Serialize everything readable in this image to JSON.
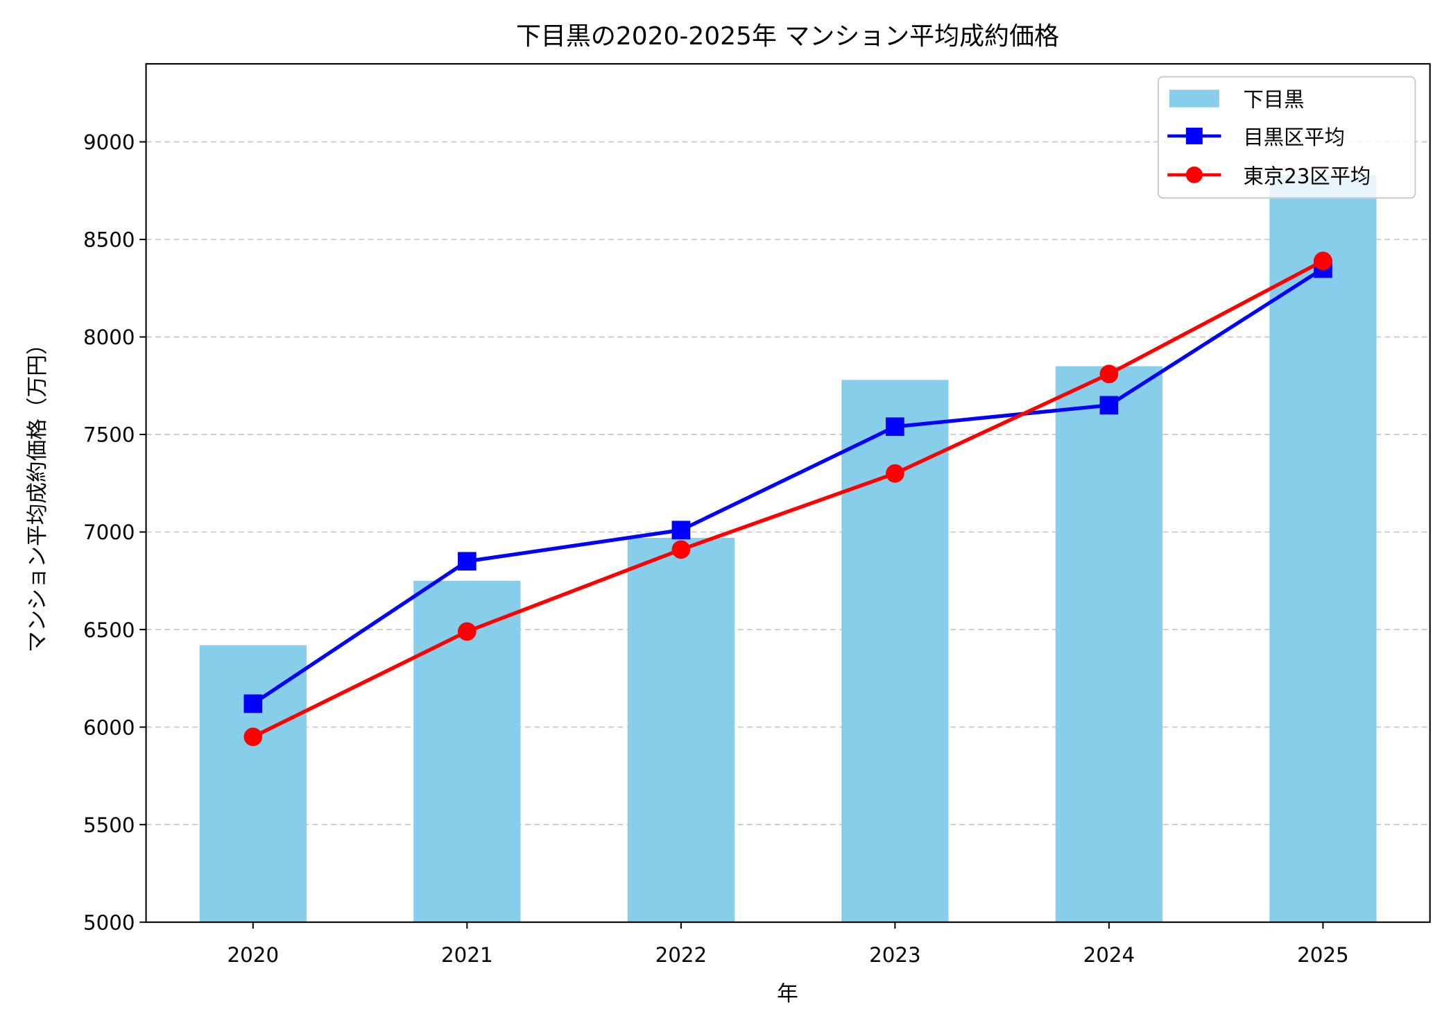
{
  "chart_data": {
    "type": "bar+line",
    "title": "下目黒の2020-2025年 マンション平均成約価格",
    "xlabel": "年",
    "ylabel": "マンション平均成約価格（万円）",
    "categories": [
      "2020",
      "2021",
      "2022",
      "2023",
      "2024",
      "2025"
    ],
    "ylim": [
      5000,
      9400
    ],
    "yticks": [
      5000,
      5500,
      6000,
      6500,
      7000,
      7500,
      8000,
      8500,
      9000
    ],
    "grid": "y dashed",
    "legend_position": "top-right",
    "series": [
      {
        "name": "下目黒",
        "type": "bar",
        "color": "#87ceeb",
        "values": [
          6420,
          6750,
          6970,
          7780,
          7850,
          8830
        ]
      },
      {
        "name": "目黒区平均",
        "type": "line",
        "marker": "square",
        "color": "#0000ff",
        "values": [
          6120,
          6850,
          7010,
          7540,
          7650,
          8350
        ]
      },
      {
        "name": "東京23区平均",
        "type": "line",
        "marker": "circle",
        "color": "#ff0000",
        "values": [
          5950,
          6490,
          6910,
          7300,
          7810,
          8390
        ]
      }
    ]
  }
}
